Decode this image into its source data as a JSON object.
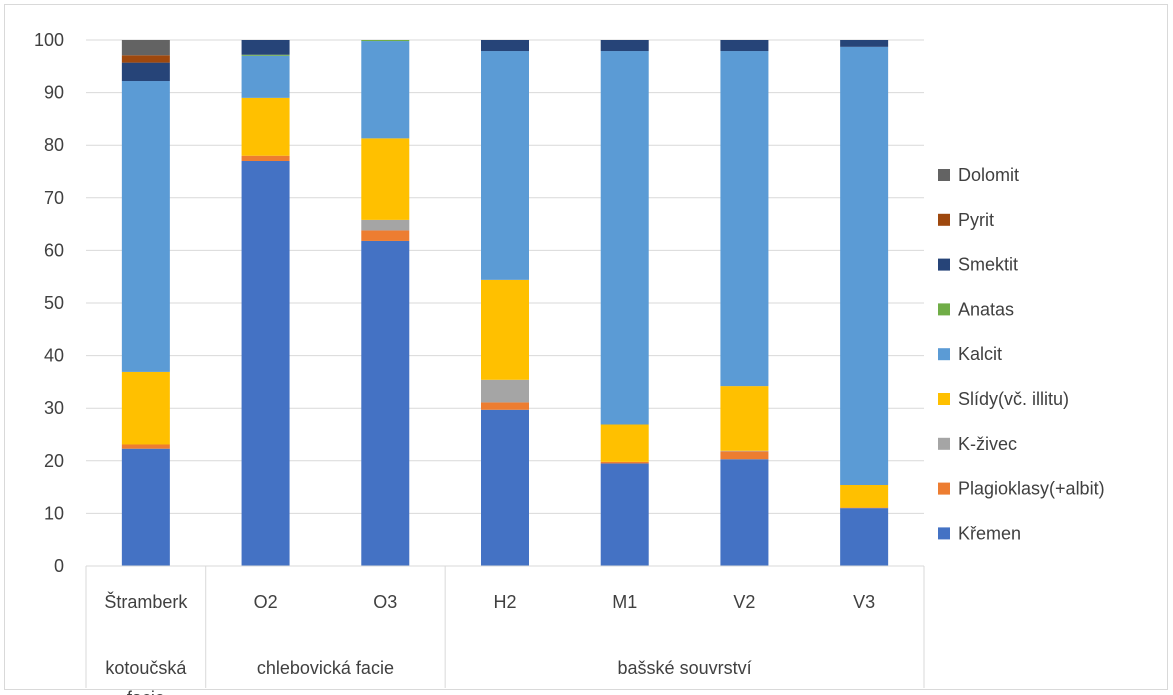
{
  "chart_data": {
    "type": "bar",
    "stacked": true,
    "ylim": [
      0,
      100
    ],
    "yticks": [
      0,
      10,
      20,
      30,
      40,
      50,
      60,
      70,
      80,
      90,
      100
    ],
    "grid": true,
    "legend_position": "right",
    "categories": [
      "Štramberk",
      "O2",
      "O3",
      "H2",
      "M1",
      "V2",
      "V3"
    ],
    "groups": [
      {
        "label": "kotoučská facie",
        "members": [
          "Štramberk"
        ]
      },
      {
        "label": "chlebovická facie",
        "members": [
          "O2",
          "O3"
        ]
      },
      {
        "label": "bašské souvrství",
        "members": [
          "H2",
          "M1",
          "V2",
          "V3"
        ]
      }
    ],
    "series": [
      {
        "name": "Křemen",
        "color": "#4472c4",
        "values": [
          22.3,
          77.0,
          61.8,
          29.7,
          19.5,
          20.3,
          11.0
        ]
      },
      {
        "name": "Plagioklasy(+albit)",
        "color": "#ed7d31",
        "values": [
          0.8,
          1.0,
          2.0,
          1.4,
          0.3,
          1.5,
          0.1
        ]
      },
      {
        "name": "K-živec",
        "color": "#a5a5a5",
        "values": [
          0.0,
          0.0,
          2.0,
          4.3,
          0.0,
          0.1,
          0.0
        ]
      },
      {
        "name": "Slídy(vč. illitu)",
        "color": "#ffc000",
        "values": [
          13.8,
          11.0,
          15.5,
          19.0,
          7.1,
          12.3,
          4.3
        ]
      },
      {
        "name": "Kalcit",
        "color": "#5b9bd5",
        "values": [
          55.3,
          8.0,
          18.5,
          43.5,
          71.0,
          63.7,
          83.3
        ]
      },
      {
        "name": "Anatas",
        "color": "#70ad47",
        "values": [
          0.0,
          0.2,
          0.2,
          0.0,
          0.0,
          0.0,
          0.0
        ]
      },
      {
        "name": "Smektit",
        "color": "#264478",
        "values": [
          3.5,
          2.8,
          0.0,
          2.1,
          2.1,
          2.1,
          1.3
        ]
      },
      {
        "name": "Pyrit",
        "color": "#9e480e",
        "values": [
          1.4,
          0.0,
          0.0,
          0.0,
          0.0,
          0.0,
          0.0
        ]
      },
      {
        "name": "Dolomit",
        "color": "#636363",
        "values": [
          2.9,
          0.0,
          0.0,
          0.0,
          0.0,
          0.0,
          0.0
        ]
      }
    ],
    "legend_order": [
      "Dolomit",
      "Pyrit",
      "Smektit",
      "Anatas",
      "Kalcit",
      "Slídy(vč. illitu)",
      "K-živec",
      "Plagioklasy(+albit)",
      "Křemen"
    ]
  }
}
